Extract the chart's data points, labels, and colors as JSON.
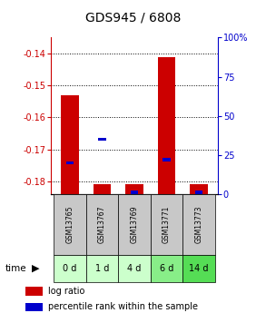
{
  "title": "GDS945 / 6808",
  "samples": [
    "GSM13765",
    "GSM13767",
    "GSM13769",
    "GSM13771",
    "GSM13773"
  ],
  "time_labels": [
    "0 d",
    "1 d",
    "4 d",
    "6 d",
    "14 d"
  ],
  "log_ratio": [
    -0.153,
    -0.181,
    -0.181,
    -0.141,
    -0.181
  ],
  "percentile_rank": [
    20,
    35,
    0,
    22,
    0
  ],
  "ylim_left": [
    -0.184,
    -0.135
  ],
  "ylim_right": [
    0,
    100
  ],
  "yticks_left": [
    -0.18,
    -0.17,
    -0.16,
    -0.15,
    -0.14
  ],
  "yticks_right": [
    0,
    25,
    50,
    75,
    100
  ],
  "bar_color": "#cc0000",
  "percentile_color": "#0000cc",
  "bar_width": 0.55,
  "background_color": "#ffffff",
  "plot_bg_color": "#ffffff",
  "sample_label_bg": "#c8c8c8",
  "time_label_bg_colors": [
    "#ccffcc",
    "#ccffcc",
    "#ccffcc",
    "#88ee88",
    "#55dd55"
  ],
  "left_axis_color": "#cc0000",
  "right_axis_color": "#0000cc",
  "title_fontsize": 10,
  "tick_fontsize": 7,
  "legend_fontsize": 7,
  "sample_fontsize": 5.5,
  "time_fontsize": 7
}
